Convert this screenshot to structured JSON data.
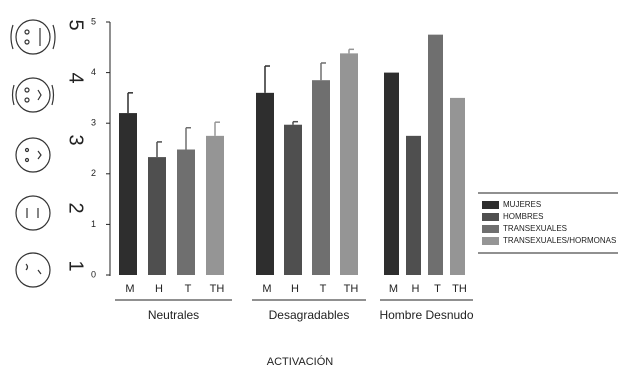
{
  "chart_data": {
    "type": "bar",
    "x_label": "ACTIVACIÓN",
    "categories": [
      "Neutrales",
      "Desagradables",
      "Hombre Desnudo"
    ],
    "sub_labels": [
      "M",
      "H",
      "T",
      "TH"
    ],
    "scale_labels": [
      "5",
      "4",
      "3",
      "2",
      "1"
    ],
    "series": [
      {
        "name": "MUJERES",
        "color": "#2e2e2e",
        "values": [
          3.2,
          3.6,
          4.0
        ],
        "errors": [
          0.4,
          0.53,
          null
        ]
      },
      {
        "name": "HOMBRES",
        "color": "#4f4f4f",
        "values": [
          2.33,
          2.97,
          2.75
        ],
        "errors": [
          0.3,
          0.06,
          null
        ]
      },
      {
        "name": "TRANSEXUALES",
        "color": "#6f6f6f",
        "values": [
          2.48,
          3.85,
          4.75
        ],
        "errors": [
          0.43,
          0.34,
          null
        ]
      },
      {
        "name": "TRANSEXUALES/HORMONAS",
        "color": "#959595",
        "values": [
          2.75,
          4.38,
          3.5
        ],
        "errors": [
          0.27,
          0.08,
          null
        ]
      }
    ],
    "ylim": [
      0,
      5
    ],
    "yticks": [
      0,
      1,
      2,
      3,
      4,
      5
    ],
    "grid": false,
    "legend": "right"
  }
}
